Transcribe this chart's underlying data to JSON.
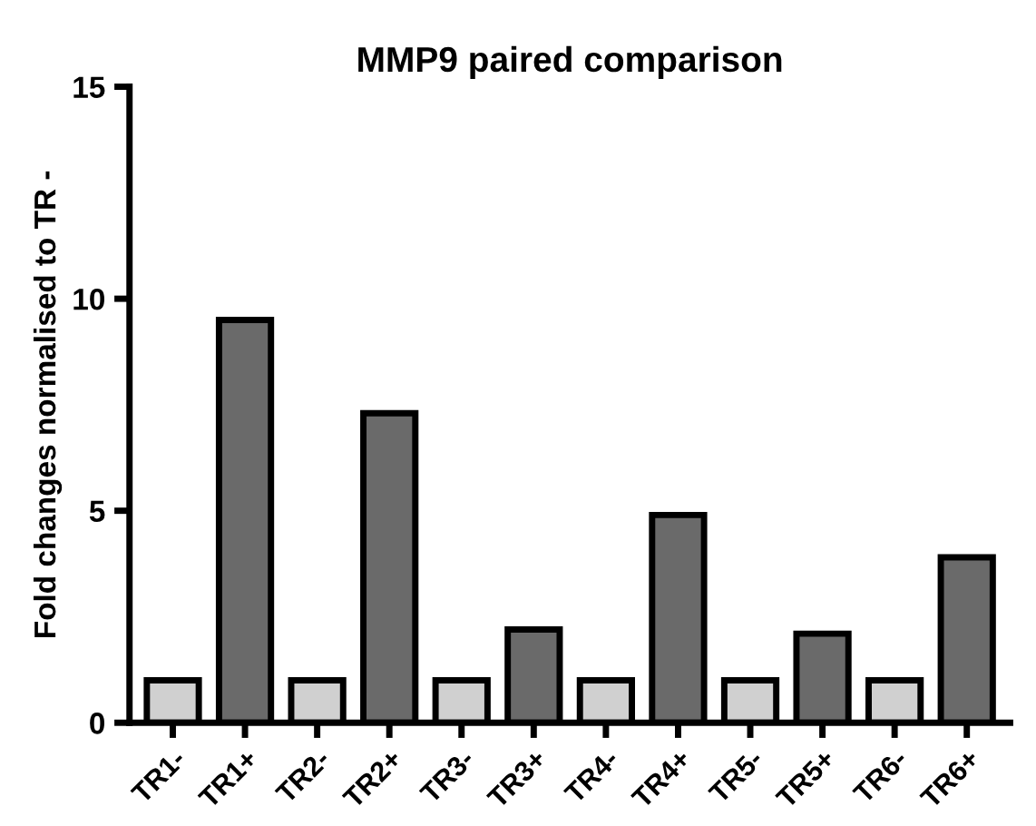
{
  "chart_data": {
    "type": "bar",
    "title": "MMP9 paired comparison",
    "ylabel": "Fold changes normalised to TR -",
    "categories": [
      "TR1-",
      "TR1+",
      "TR2-",
      "TR2+",
      "TR3-",
      "TR3+",
      "TR4-",
      "TR4+",
      "TR5-",
      "TR5+",
      "TR6-",
      "TR6+"
    ],
    "values": [
      1,
      9.5,
      1,
      7.3,
      1,
      2.2,
      1,
      4.9,
      1,
      2.1,
      1,
      3.9
    ],
    "colors": [
      "#d0d0d0",
      "#6a6a6a",
      "#d0d0d0",
      "#6a6a6a",
      "#d0d0d0",
      "#6a6a6a",
      "#d0d0d0",
      "#6a6a6a",
      "#d0d0d0",
      "#6a6a6a",
      "#d0d0d0",
      "#6a6a6a"
    ],
    "ylim": [
      0,
      15
    ],
    "yticks": [
      0,
      5,
      10,
      15
    ],
    "grid": false,
    "legend": false
  }
}
